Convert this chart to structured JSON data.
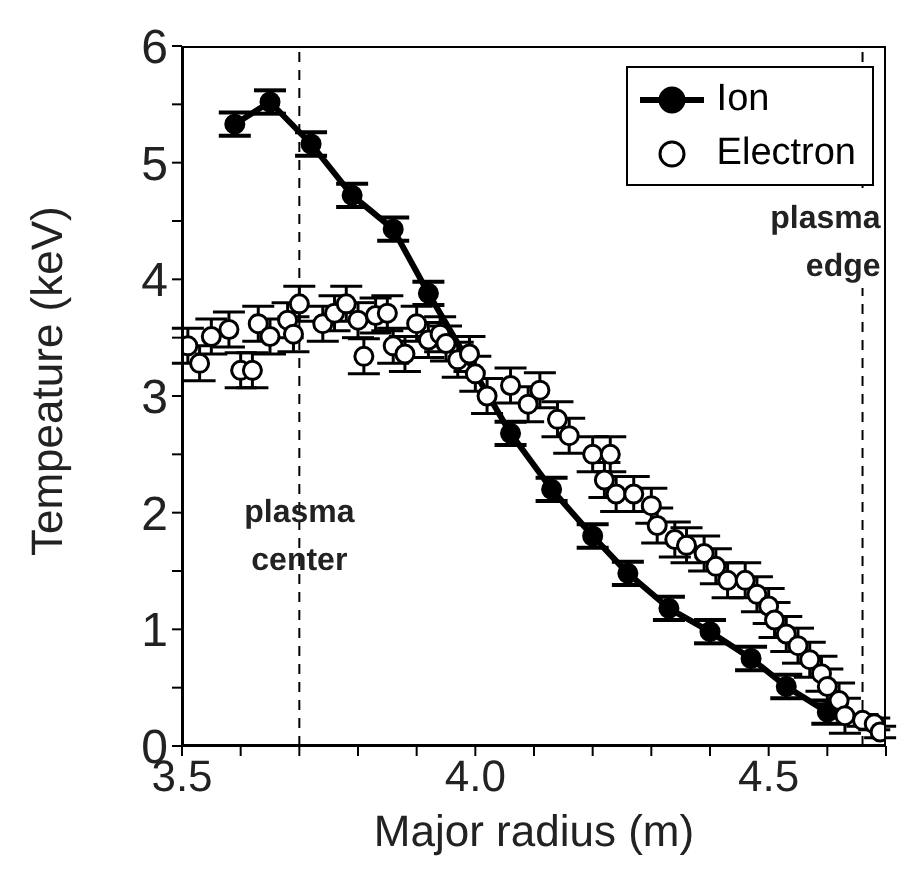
{
  "chart_data": {
    "type": "scatter",
    "xlabel": "Major radius (m)",
    "ylabel": "Tempeature (keV)",
    "xlim": [
      3.5,
      4.7
    ],
    "xticks": [
      {
        "value": 3.5,
        "label": "3.5"
      },
      {
        "value": 3.6,
        "label": null
      },
      {
        "value": 3.7,
        "label": null
      },
      {
        "value": 3.8,
        "label": null
      },
      {
        "value": 3.9,
        "label": null
      },
      {
        "value": 4.0,
        "label": "4.0"
      },
      {
        "value": 4.1,
        "label": null
      },
      {
        "value": 4.2,
        "label": null
      },
      {
        "value": 4.3,
        "label": null
      },
      {
        "value": 4.4,
        "label": null
      },
      {
        "value": 4.5,
        "label": "4.5"
      },
      {
        "value": 4.6,
        "label": null
      },
      {
        "value": 4.7,
        "label": null
      }
    ],
    "ylim": [
      0,
      6
    ],
    "yticks": [
      0,
      {
        "value": 0.5,
        "label": null
      },
      1,
      {
        "value": 1.5,
        "label": null
      },
      2,
      {
        "value": 2.5,
        "label": null
      },
      3,
      {
        "value": 3.5,
        "label": null
      },
      4,
      {
        "value": 4.5,
        "label": null
      },
      5,
      {
        "value": 5.5,
        "label": null
      },
      6
    ],
    "grid": false,
    "legend": "top right",
    "marker": "circle",
    "ref_lines": [
      {
        "axis": "x",
        "value": 3.7,
        "label": "plasma center",
        "line_style": "dashed",
        "color": "#000000"
      },
      {
        "axis": "x",
        "value": 4.66,
        "label": "plasma edge",
        "line_style": "dashed",
        "color": "#000000"
      }
    ],
    "series": [
      {
        "name": "Ion",
        "type": "line",
        "color": "#000000",
        "x": [
          3.59,
          3.65,
          3.72,
          3.79,
          3.86,
          3.92,
          4.06,
          4.13,
          4.2,
          4.26,
          4.33,
          4.4,
          4.47,
          4.53,
          4.6
        ],
        "values": [
          5.33,
          5.52,
          5.16,
          4.72,
          4.43,
          3.88,
          2.68,
          2.2,
          1.8,
          1.48,
          1.18,
          0.98,
          0.75,
          0.51,
          0.29
        ],
        "errors": [
          0.1,
          0.1,
          0.1,
          0.1,
          0.1,
          0.1,
          0.1,
          0.1,
          0.1,
          0.1,
          0.1,
          0.1,
          0.1,
          0.1,
          0.1
        ]
      },
      {
        "name": "Electron",
        "type": "scatter",
        "color": "#000000",
        "x": [
          3.51,
          3.53,
          3.55,
          3.58,
          3.6,
          3.62,
          3.63,
          3.65,
          3.68,
          3.69,
          3.7,
          3.74,
          3.76,
          3.78,
          3.8,
          3.81,
          3.83,
          3.85,
          3.86,
          3.88,
          3.9,
          3.92,
          3.94,
          3.95,
          3.97,
          3.99,
          4.0,
          4.02,
          4.06,
          4.09,
          4.11,
          4.14,
          4.16,
          4.2,
          4.22,
          4.23,
          4.24,
          4.27,
          4.3,
          4.31,
          4.34,
          4.36,
          4.39,
          4.41,
          4.43,
          4.46,
          4.48,
          4.5,
          4.51,
          4.53,
          4.55,
          4.57,
          4.59,
          4.6,
          4.62,
          4.63,
          4.66,
          4.68,
          4.69
        ],
        "values": [
          3.43,
          3.28,
          3.51,
          3.57,
          3.22,
          3.22,
          3.62,
          3.51,
          3.65,
          3.53,
          3.79,
          3.62,
          3.71,
          3.79,
          3.65,
          3.34,
          3.69,
          3.71,
          3.43,
          3.36,
          3.62,
          3.48,
          3.53,
          3.45,
          3.31,
          3.36,
          3.19,
          3.0,
          3.09,
          2.93,
          3.05,
          2.8,
          2.66,
          2.5,
          2.28,
          2.5,
          2.16,
          2.16,
          2.06,
          1.89,
          1.77,
          1.72,
          1.65,
          1.54,
          1.42,
          1.42,
          1.3,
          1.2,
          1.08,
          0.96,
          0.86,
          0.74,
          0.62,
          0.51,
          0.39,
          0.26,
          0.22,
          0.19,
          0.12
        ],
        "errors": [
          0.15,
          0.15,
          0.15,
          0.15,
          0.15,
          0.15,
          0.15,
          0.15,
          0.15,
          0.15,
          0.15,
          0.15,
          0.15,
          0.15,
          0.15,
          0.15,
          0.15,
          0.15,
          0.15,
          0.15,
          0.15,
          0.15,
          0.15,
          0.15,
          0.15,
          0.15,
          0.15,
          0.15,
          0.15,
          0.15,
          0.15,
          0.15,
          0.15,
          0.15,
          0.15,
          0.15,
          0.15,
          0.15,
          0.15,
          0.15,
          0.15,
          0.15,
          0.15,
          0.15,
          0.15,
          0.15,
          0.15,
          0.15,
          0.15,
          0.15,
          0.15,
          0.15,
          0.15,
          0.15,
          0.15,
          0.15,
          0.05,
          0.05,
          0.05
        ]
      }
    ]
  }
}
